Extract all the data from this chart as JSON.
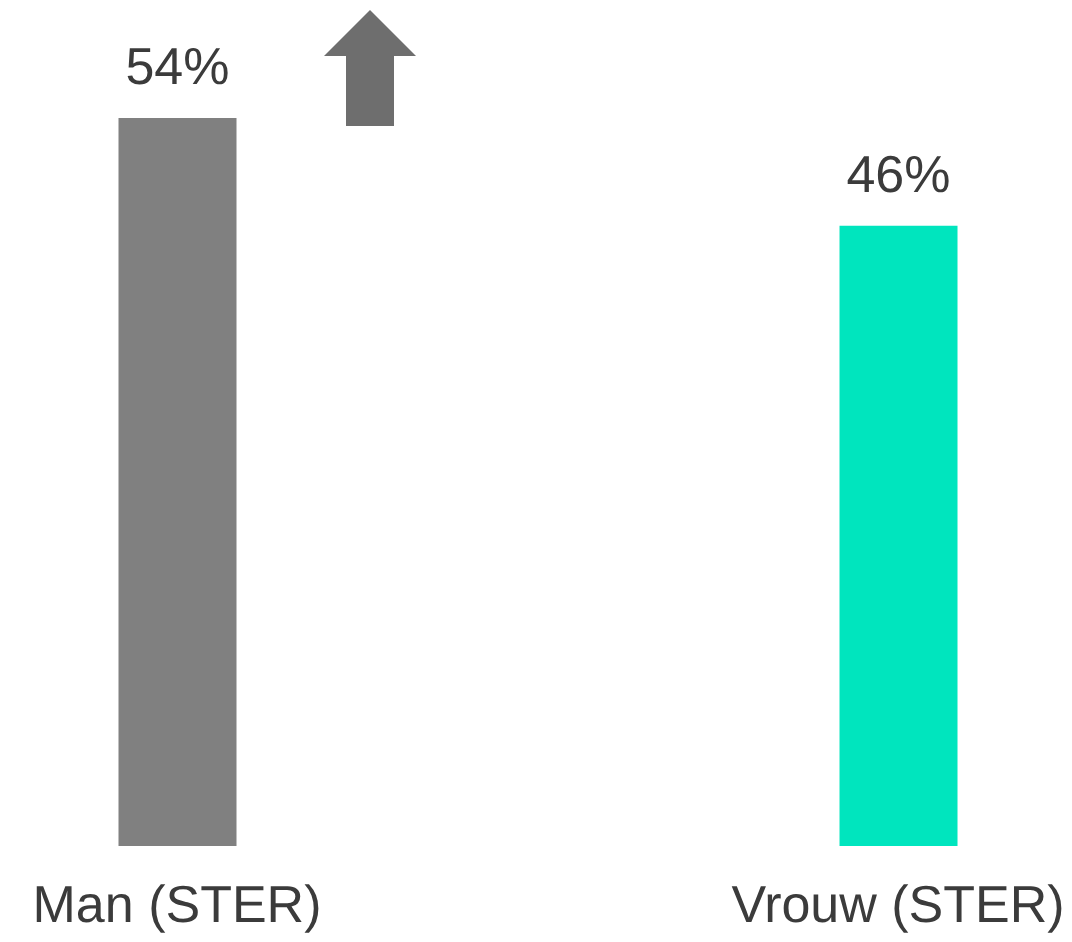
{
  "chart_data": {
    "type": "bar",
    "categories": [
      "Man (STER)",
      "Vrouw (STER)"
    ],
    "values": [
      54,
      46
    ],
    "colors": [
      "#808080",
      "#00e5be"
    ],
    "value_labels": [
      "54%",
      "46%"
    ]
  }
}
